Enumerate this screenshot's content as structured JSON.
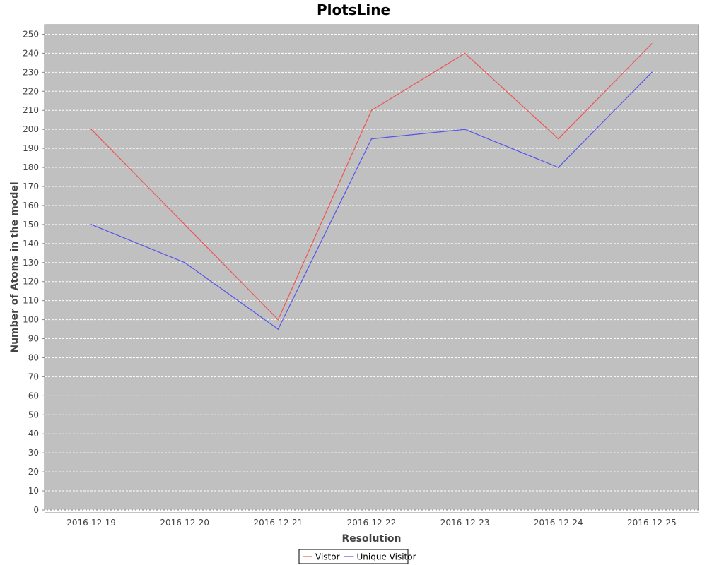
{
  "chart_data": {
    "type": "line",
    "title": "PlotsLine",
    "xlabel": "Resolution",
    "ylabel": "Number of Atoms in the model",
    "categories": [
      "2016-12-19",
      "2016-12-20",
      "2016-12-21",
      "2016-12-22",
      "2016-12-23",
      "2016-12-24",
      "2016-12-25"
    ],
    "series": [
      {
        "name": "Vistor",
        "color": "#ee5555",
        "values": [
          200,
          150,
          100,
          210,
          240,
          195,
          245
        ]
      },
      {
        "name": "Unique Visitor",
        "color": "#5555ee",
        "values": [
          150,
          130,
          95,
          195,
          200,
          180,
          230
        ]
      }
    ],
    "ylim": [
      0,
      255
    ],
    "yticks": [
      0,
      10,
      20,
      30,
      40,
      50,
      60,
      70,
      80,
      90,
      100,
      110,
      120,
      130,
      140,
      150,
      160,
      170,
      180,
      190,
      200,
      210,
      220,
      230,
      240,
      250
    ],
    "grid": true,
    "legend": "bottom-center",
    "plot_background": "#c0c0c0",
    "grid_color": "#ffffff"
  }
}
